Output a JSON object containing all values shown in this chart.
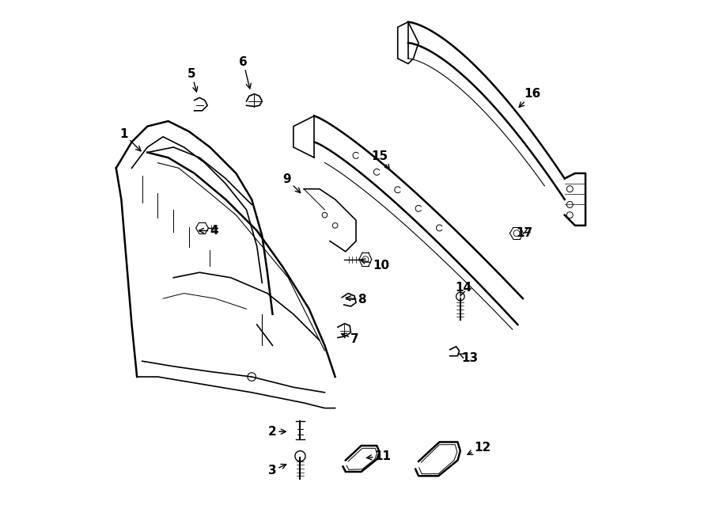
{
  "background_color": "#ffffff",
  "line_color": "#000000",
  "parts_labels": [
    [
      1,
      0.055,
      0.745,
      0.092,
      0.708
    ],
    [
      2,
      0.34,
      0.175,
      0.372,
      0.175
    ],
    [
      3,
      0.34,
      0.1,
      0.372,
      0.115
    ],
    [
      4,
      0.228,
      0.56,
      0.192,
      0.56
    ],
    [
      5,
      0.185,
      0.86,
      0.196,
      0.82
    ],
    [
      6,
      0.284,
      0.883,
      0.298,
      0.826
    ],
    [
      7,
      0.498,
      0.352,
      0.466,
      0.365
    ],
    [
      8,
      0.512,
      0.428,
      0.474,
      0.432
    ],
    [
      9,
      0.368,
      0.658,
      0.398,
      0.628
    ],
    [
      10,
      0.548,
      0.493,
      0.502,
      0.506
    ],
    [
      11,
      0.552,
      0.128,
      0.514,
      0.124
    ],
    [
      12,
      0.742,
      0.145,
      0.708,
      0.128
    ],
    [
      13,
      0.718,
      0.316,
      0.693,
      0.326
    ],
    [
      14,
      0.706,
      0.45,
      0.7,
      0.434
    ],
    [
      15,
      0.546,
      0.702,
      0.568,
      0.672
    ],
    [
      16,
      0.838,
      0.822,
      0.808,
      0.792
    ],
    [
      17,
      0.823,
      0.556,
      0.818,
      0.553
    ]
  ]
}
